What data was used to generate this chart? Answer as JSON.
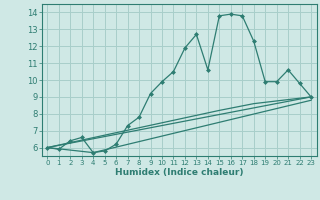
{
  "xlabel": "Humidex (Indice chaleur)",
  "background_color": "#cfe8e5",
  "grid_color": "#a8ceca",
  "line_color": "#2e7d72",
  "xlim": [
    -0.5,
    23.5
  ],
  "ylim": [
    5.5,
    14.5
  ],
  "xticks": [
    0,
    1,
    2,
    3,
    4,
    5,
    6,
    7,
    8,
    9,
    10,
    11,
    12,
    13,
    14,
    15,
    16,
    17,
    18,
    19,
    20,
    21,
    22,
    23
  ],
  "yticks": [
    6,
    7,
    8,
    9,
    10,
    11,
    12,
    13,
    14
  ],
  "lines": [
    {
      "x": [
        0,
        1,
        2,
        3,
        4,
        5,
        6,
        7,
        8,
        9,
        10,
        11,
        12,
        13,
        14,
        15,
        16,
        17,
        18,
        19,
        20,
        21,
        22,
        23
      ],
      "y": [
        6.0,
        5.9,
        6.4,
        6.6,
        5.7,
        5.8,
        6.2,
        7.3,
        7.8,
        9.2,
        9.9,
        10.5,
        11.9,
        12.7,
        10.6,
        13.8,
        13.9,
        13.8,
        12.3,
        9.9,
        9.9,
        10.6,
        9.8,
        9.0
      ],
      "marker": "D",
      "markersize": 2.0
    },
    {
      "x": [
        0,
        23
      ],
      "y": [
        6.0,
        9.0
      ],
      "marker": null,
      "markersize": 0
    },
    {
      "x": [
        0,
        4,
        23
      ],
      "y": [
        6.0,
        5.7,
        8.8
      ],
      "marker": null,
      "markersize": 0
    },
    {
      "x": [
        0,
        15,
        18,
        23
      ],
      "y": [
        6.0,
        8.2,
        8.6,
        9.0
      ],
      "marker": null,
      "markersize": 0
    }
  ],
  "tick_fontsize_x": 5.0,
  "tick_fontsize_y": 6.0,
  "xlabel_fontsize": 6.5
}
